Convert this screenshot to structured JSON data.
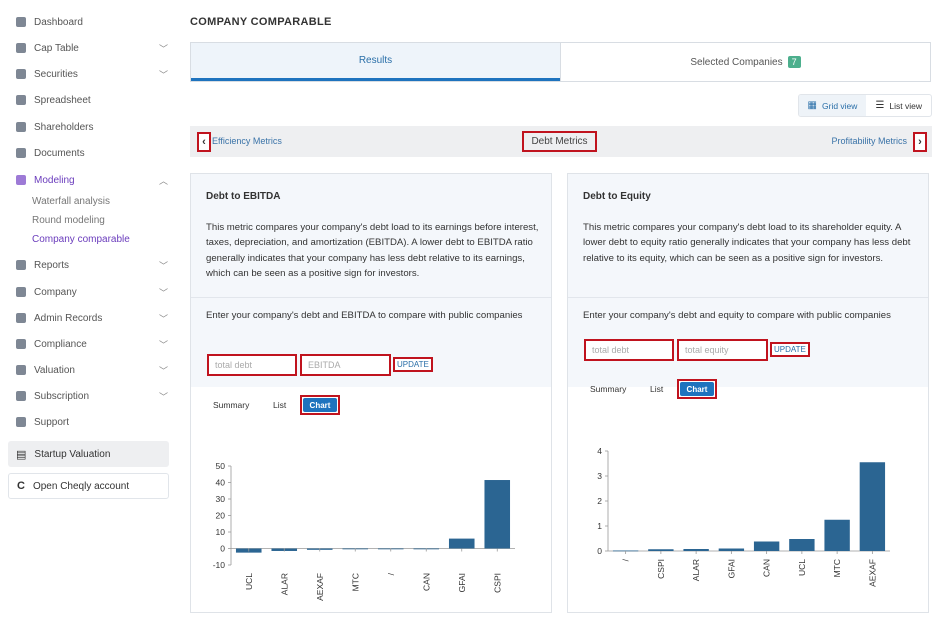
{
  "sidebar": {
    "items": [
      {
        "label": "Dashboard",
        "icon": "dashboard-icon",
        "has_chevron": false
      },
      {
        "label": "Cap Table",
        "icon": "pie-chart-icon",
        "has_chevron": true
      },
      {
        "label": "Securities",
        "icon": "document-icon",
        "has_chevron": true
      },
      {
        "label": "Spreadsheet",
        "icon": "spreadsheet-icon",
        "has_chevron": false
      },
      {
        "label": "Shareholders",
        "icon": "user-icon",
        "has_chevron": false
      },
      {
        "label": "Documents",
        "icon": "folder-icon",
        "has_chevron": false
      },
      {
        "label": "Modeling",
        "icon": "lightbulb-icon",
        "has_chevron": true,
        "expanded": true
      },
      {
        "label": "Reports",
        "icon": "report-icon",
        "has_chevron": true
      },
      {
        "label": "Company",
        "icon": "building-icon",
        "has_chevron": true
      },
      {
        "label": "Admin Records",
        "icon": "admin-icon",
        "has_chevron": true
      },
      {
        "label": "Compliance",
        "icon": "shield-icon",
        "has_chevron": true
      },
      {
        "label": "Valuation",
        "icon": "valuation-icon",
        "has_chevron": true
      },
      {
        "label": "Subscription",
        "icon": "subscription-icon",
        "has_chevron": true
      },
      {
        "label": "Support",
        "icon": "support-icon",
        "has_chevron": false
      }
    ],
    "modeling_sub": [
      "Waterfall analysis",
      "Round modeling",
      "Company comparable"
    ],
    "startup_valuation": "Startup Valuation",
    "open_account": "Open Cheqly account"
  },
  "page": {
    "title": "COMPANY COMPARABLE"
  },
  "tabs": {
    "results": "Results",
    "selected": "Selected Companies",
    "selected_count": "7"
  },
  "view_toggle": {
    "grid": "Grid view",
    "list": "List view",
    "active": "grid"
  },
  "metrics_nav": {
    "prev": "Efficiency Metrics",
    "current": "Debt Metrics",
    "next": "Profitability Metrics"
  },
  "cards": [
    {
      "title": "Debt to EBITDA",
      "description": "This metric compares your company's debt load to its earnings before interest, taxes, depreciation, and amortization (EBITDA). A lower debt to EBITDA ratio generally indicates that your company has less debt relative to its earnings, which can be seen as a positive sign for investors.",
      "prompt": "Enter your company's debt and EBITDA to compare with public companies",
      "input1_placeholder": "total debt",
      "input2_placeholder": "EBITDA",
      "update": "UPDATE",
      "seg": {
        "summary": "Summary",
        "list": "List",
        "chart": "Chart",
        "active": "Chart"
      }
    },
    {
      "title": "Debt to Equity",
      "description": "This metric compares your company's debt load to its shareholder equity. A lower debt to equity ratio generally indicates that your company has less debt relative to its equity, which can be seen as a positive sign for investors.",
      "prompt": "Enter your company's debt and equity to compare with public companies",
      "input1_placeholder": "total debt",
      "input2_placeholder": "total equity",
      "update": "UPDATE",
      "seg": {
        "summary": "Summary",
        "list": "List",
        "chart": "Chart",
        "active": "Chart"
      }
    }
  ],
  "colors": {
    "accent": "#1e73be",
    "bar": "#2b6592",
    "highlight": "#c0131e",
    "active_nav": "#6a3cbc"
  },
  "chart_data": [
    {
      "type": "bar",
      "categories": [
        "UCL",
        "ALAR",
        "AEXAF",
        "MTC",
        "/",
        "CAN",
        "GFAI",
        "CSPI"
      ],
      "values": [
        -2.5,
        -1.5,
        -0.8,
        -0.4,
        -0.1,
        0,
        6,
        41.5
      ],
      "ylim": [
        -10,
        50
      ],
      "yticks": [
        -10,
        0,
        10,
        20,
        30,
        40,
        50
      ]
    },
    {
      "type": "bar",
      "categories": [
        "/",
        "CSPI",
        "ALAR",
        "GFAI",
        "CAN",
        "UCL",
        "MTC",
        "AEXAF"
      ],
      "values": [
        0.02,
        0.07,
        0.08,
        0.1,
        0.38,
        0.48,
        1.25,
        3.55
      ],
      "ylim": [
        0,
        4
      ],
      "yticks": [
        0,
        1,
        2,
        3,
        4
      ]
    }
  ]
}
